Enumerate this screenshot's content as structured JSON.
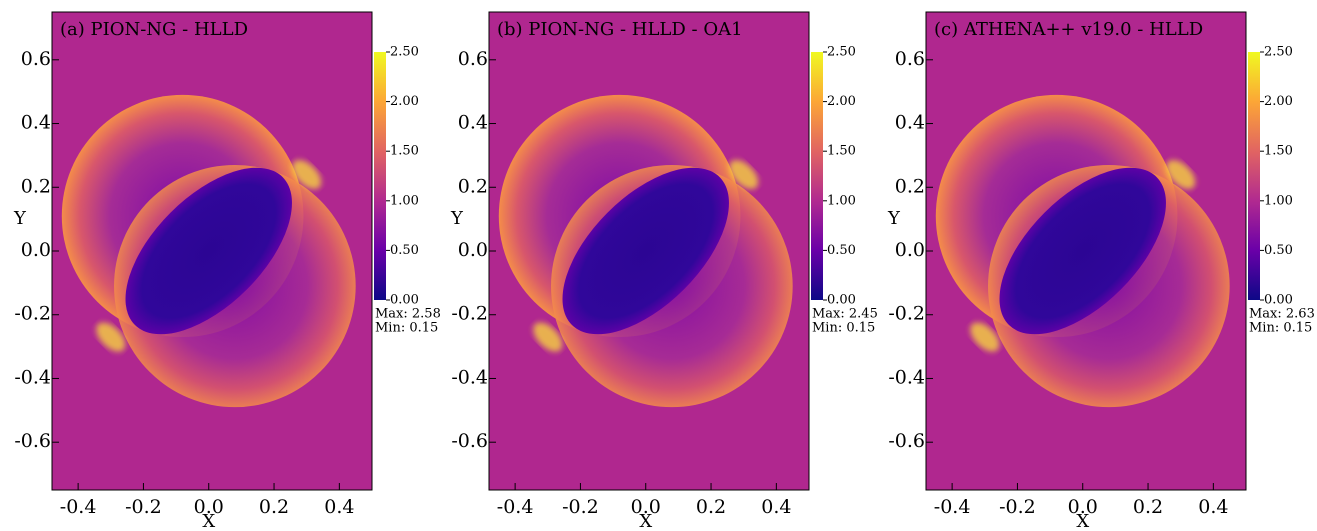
{
  "chart_data": [
    {
      "type": "heatmap",
      "title": "(a) PION-NG - HLLD",
      "x_label": "X",
      "y_label": "Y",
      "xlim": [
        -0.48,
        0.5
      ],
      "xticks": [
        -0.4,
        -0.2,
        {
          "value": 0,
          "label": "0.0"
        },
        0.2,
        0.4
      ],
      "ylim": [
        -0.75,
        0.75
      ],
      "yticks": [
        -0.6,
        -0.4,
        -0.2,
        {
          "value": 0,
          "label": "0.0"
        },
        0.2,
        0.4,
        0.6
      ],
      "colorbar": {
        "lim": [
          0,
          2.5
        ],
        "ticks": [
          {
            "value": 0,
            "label": "0.00"
          },
          {
            "value": 0.5,
            "label": "0.50"
          },
          {
            "value": 1,
            "label": "1.00"
          },
          {
            "value": 1.5,
            "label": "1.50"
          },
          {
            "value": 2,
            "label": "2.00"
          },
          {
            "value": 2.5,
            "label": "2.50"
          }
        ]
      },
      "max_label": "Max: 2.58",
      "min_label": "Min: 0.15"
    },
    {
      "type": "heatmap",
      "title": "(b) PION-NG - HLLD - OA1",
      "x_label": "X",
      "y_label": "Y",
      "xlim": [
        -0.48,
        0.5
      ],
      "xticks": [
        -0.4,
        -0.2,
        {
          "value": 0,
          "label": "0.0"
        },
        0.2,
        0.4
      ],
      "ylim": [
        -0.75,
        0.75
      ],
      "yticks": [
        -0.6,
        -0.4,
        -0.2,
        {
          "value": 0,
          "label": "0.0"
        },
        0.2,
        0.4,
        0.6
      ],
      "colorbar": {
        "lim": [
          0,
          2.5
        ],
        "ticks": [
          {
            "value": 0,
            "label": "0.00"
          },
          {
            "value": 0.5,
            "label": "0.50"
          },
          {
            "value": 1,
            "label": "1.00"
          },
          {
            "value": 1.5,
            "label": "1.50"
          },
          {
            "value": 2,
            "label": "2.00"
          },
          {
            "value": 2.5,
            "label": "2.50"
          }
        ]
      },
      "max_label": "Max: 2.45",
      "min_label": "Min: 0.15"
    },
    {
      "type": "heatmap",
      "title": "(c) ATHENA++ v19.0 - HLLD",
      "x_label": "X",
      "y_label": "Y",
      "xlim": [
        -0.48,
        0.5
      ],
      "xticks": [
        -0.4,
        -0.2,
        {
          "value": 0,
          "label": "0.0"
        },
        0.2,
        0.4
      ],
      "ylim": [
        -0.75,
        0.75
      ],
      "yticks": [
        -0.6,
        -0.4,
        -0.2,
        {
          "value": 0,
          "label": "0.0"
        },
        0.2,
        0.4,
        0.6
      ],
      "colorbar": {
        "lim": [
          0,
          2.5
        ],
        "ticks": [
          {
            "value": 0,
            "label": "0.00"
          },
          {
            "value": 0.5,
            "label": "0.50"
          },
          {
            "value": 1,
            "label": "1.00"
          },
          {
            "value": 1.5,
            "label": "1.50"
          },
          {
            "value": 2,
            "label": "2.00"
          },
          {
            "value": 2.5,
            "label": "2.50"
          }
        ]
      },
      "max_label": "Max: 2.63",
      "min_label": "Min: 0.15"
    }
  ]
}
